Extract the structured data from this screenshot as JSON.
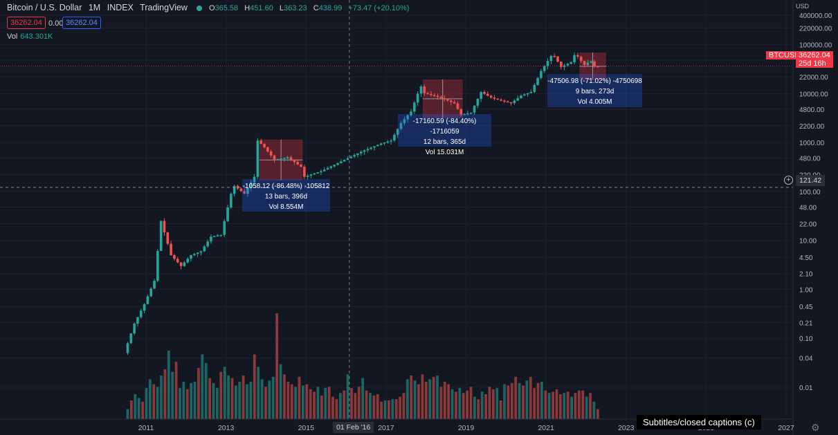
{
  "header": {
    "symbol": "Bitcoin / U.S. Dollar",
    "interval": "1M",
    "exchange": "INDEX",
    "brand": "TradingView",
    "open_label": "O",
    "open": "365.58",
    "high_label": "H",
    "high": "451.60",
    "low_label": "L",
    "low": "363.23",
    "close_label": "C",
    "close": "438.99",
    "change": "+73.47 (+20.10%)",
    "sell_price": "36262.04",
    "spread": "0.00",
    "buy_price": "36262.04",
    "volume_label": "Vol",
    "volume_value": "643.301K"
  },
  "colors": {
    "background": "#131722",
    "up": "#26a69a",
    "down": "#ef5350",
    "measure_box": "#2962ff",
    "price_label": "#f23645"
  },
  "axis": {
    "currency": "USD",
    "y_ticks": [
      "400000.00",
      "220000.00",
      "100000.00",
      "48000.00",
      "22000.00",
      "10000.00",
      "4800.00",
      "2200.00",
      "1000.00",
      "480.00",
      "220.00",
      "100.00",
      "48.00",
      "22.00",
      "10.00",
      "4.50",
      "2.10",
      "1.00",
      "0.45",
      "0.21",
      "0.10",
      "0.04",
      "0.01"
    ],
    "x_ticks": [
      "2011",
      "2013",
      "2015",
      "2017",
      "2019",
      "2021",
      "2023",
      "2025",
      "2027"
    ]
  },
  "labels": {
    "ticker": "BTCUSD",
    "last_price": "36262.04",
    "countdown": "25d 16h",
    "crosshair_price": "121.42",
    "crosshair_date": "01 Feb '16",
    "caption": "Subtitles/closed captions (c)"
  },
  "measurements": [
    {
      "line1": "-1058.12 (-86.48%) -105812",
      "line2": "13 bars, 396d",
      "line3": "Vol 8.554M"
    },
    {
      "line1": "-17160.59 (-84.40%) -1716059",
      "line2": "12 bars, 365d",
      "line3": "Vol 15.031M"
    },
    {
      "line1": "-47506.98 (-71.02%) -4750698",
      "line2": "9 bars, 273d",
      "line3": "Vol 4.005M"
    }
  ],
  "chart_data": {
    "type": "candlestick",
    "title": "Bitcoin / U.S. Dollar",
    "interval": "1M",
    "y_scale": "log",
    "ylim": [
      0.006,
      400000
    ],
    "x_range": [
      "2010-07",
      "2027-07"
    ],
    "series": [
      {
        "name": "BTCUSD",
        "points": [
          [
            "2010-07",
            0.05
          ],
          [
            "2010-10",
            0.2
          ],
          [
            "2011-01",
            0.5
          ],
          [
            "2011-04",
            1.5
          ],
          [
            "2011-06",
            25
          ],
          [
            "2011-09",
            5
          ],
          [
            "2011-12",
            3
          ],
          [
            "2012-03",
            5
          ],
          [
            "2012-06",
            6
          ],
          [
            "2012-09",
            12
          ],
          [
            "2012-12",
            13
          ],
          [
            "2013-03",
            90
          ],
          [
            "2013-04",
            130
          ],
          [
            "2013-07",
            90
          ],
          [
            "2013-10",
            200
          ],
          [
            "2013-11",
            1100
          ],
          [
            "2014-01",
            800
          ],
          [
            "2014-04",
            450
          ],
          [
            "2014-08",
            500
          ],
          [
            "2014-12",
            320
          ],
          [
            "2015-01",
            200
          ],
          [
            "2015-06",
            260
          ],
          [
            "2015-11",
            380
          ],
          [
            "2016-06",
            650
          ],
          [
            "2016-12",
            960
          ],
          [
            "2017-03",
            1100
          ],
          [
            "2017-06",
            2500
          ],
          [
            "2017-09",
            4300
          ],
          [
            "2017-11",
            10000
          ],
          [
            "2017-12",
            14000
          ],
          [
            "2018-01",
            10200
          ],
          [
            "2018-04",
            9000
          ],
          [
            "2018-07",
            7700
          ],
          [
            "2018-10",
            6300
          ],
          [
            "2018-12",
            3700
          ],
          [
            "2019-03",
            4100
          ],
          [
            "2019-06",
            10800
          ],
          [
            "2019-09",
            8300
          ],
          [
            "2019-12",
            7200
          ],
          [
            "2020-03",
            6400
          ],
          [
            "2020-06",
            9100
          ],
          [
            "2020-09",
            10800
          ],
          [
            "2020-12",
            29000
          ],
          [
            "2021-03",
            58800
          ],
          [
            "2021-04",
            57700
          ],
          [
            "2021-06",
            35000
          ],
          [
            "2021-09",
            43800
          ],
          [
            "2021-10",
            61300
          ],
          [
            "2021-11",
            57000
          ],
          [
            "2021-12",
            46300
          ],
          [
            "2022-01",
            38500
          ],
          [
            "2022-02",
            43200
          ],
          [
            "2022-03",
            45500
          ],
          [
            "2022-04",
            36262
          ]
        ]
      }
    ],
    "volume": [
      0.8,
      1.5,
      2,
      1.7,
      1.4,
      2.5,
      3.2,
      2.8,
      2.6,
      3.5,
      4,
      5.5,
      3.8,
      4.6,
      2.5,
      3,
      2.4,
      2.9,
      3,
      4.1,
      5.2,
      4.5,
      3.3,
      2.9,
      2.5,
      3.8,
      4.2,
      3.5,
      3.3,
      2.7,
      3,
      3.5,
      2.8,
      3,
      5.2,
      4.2,
      3.2,
      2.6,
      3.1,
      3.4,
      8.5,
      4.4,
      3.6,
      3,
      2.8,
      2.6,
      3.4,
      2.7,
      2.8,
      2.4,
      2.2,
      2.6,
      1.9,
      2.5,
      2.6,
      1.8,
      1.6,
      2.1,
      2.3,
      3.6,
      2.5,
      2.1,
      2.6,
      3.3,
      2.3,
      2.1,
      1.9,
      2,
      1.4,
      1.5,
      1.5,
      1.6,
      1.6,
      1.8,
      2.1,
      3.2,
      3.5,
      3.1,
      2.8,
      3.6,
      3,
      3.2,
      3.4,
      3.5,
      2.6,
      3,
      2.8,
      2.4,
      2.2,
      2.5,
      2.1,
      2.3,
      2.6,
      1.8,
      1.6,
      2.2,
      2,
      2.6,
      2.4,
      2.5,
      1.5,
      2.8,
      2.7,
      2.9,
      3.4,
      2.9,
      2.7,
      3.1,
      3.4,
      2.5,
      2.9,
      3,
      2.3,
      2.1,
      2.2,
      2.4,
      2,
      2.1,
      2.2,
      1.8,
      2.1,
      2.3,
      2.3,
      1.8,
      2.1,
      1.4,
      0.8
    ]
  }
}
